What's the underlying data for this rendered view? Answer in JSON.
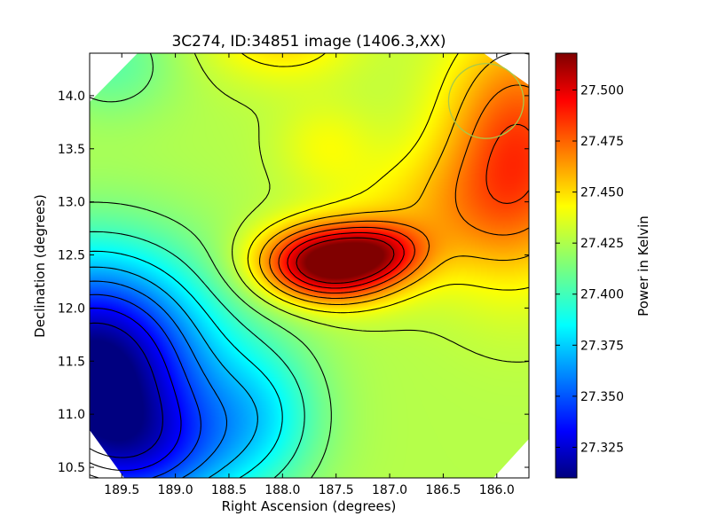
{
  "chart_data": {
    "type": "heatmap",
    "title": "3C274, ID:34851 image (1406.3,XX)",
    "xlabel": "Right Ascension (degrees)",
    "ylabel": "Declination (degrees)",
    "xlim": [
      189.8,
      185.7
    ],
    "ylim": [
      10.4,
      14.4
    ],
    "x_ticks": [
      "189.5",
      "189.0",
      "188.5",
      "188.0",
      "187.5",
      "187.0",
      "186.5",
      "186.0"
    ],
    "y_ticks": [
      "10.5",
      "11.0",
      "11.5",
      "12.0",
      "12.5",
      "13.0",
      "13.5",
      "14.0"
    ],
    "colorbar": {
      "label": "Power in Kelvin",
      "range": [
        27.31,
        27.518
      ],
      "ticks": [
        "27.325",
        "27.350",
        "27.375",
        "27.400",
        "27.425",
        "27.450",
        "27.475",
        "27.500"
      ],
      "colormap": "jet"
    },
    "grid": false,
    "features": [
      {
        "kind": "peak",
        "ra": 187.6,
        "dec": 12.4,
        "value": 27.515
      },
      {
        "kind": "minimum",
        "ra": 189.7,
        "dec": 11.5,
        "value": 27.31
      },
      {
        "kind": "high_region",
        "ra": 185.9,
        "dec": 13.4,
        "value": 27.47
      },
      {
        "kind": "plateau",
        "ra": 187.6,
        "dec": 13.5,
        "value": 27.44
      }
    ],
    "beam_marker": {
      "ra": 186.1,
      "dec": 13.95,
      "radius_deg": 0.35,
      "color": "#a7c94a"
    }
  }
}
